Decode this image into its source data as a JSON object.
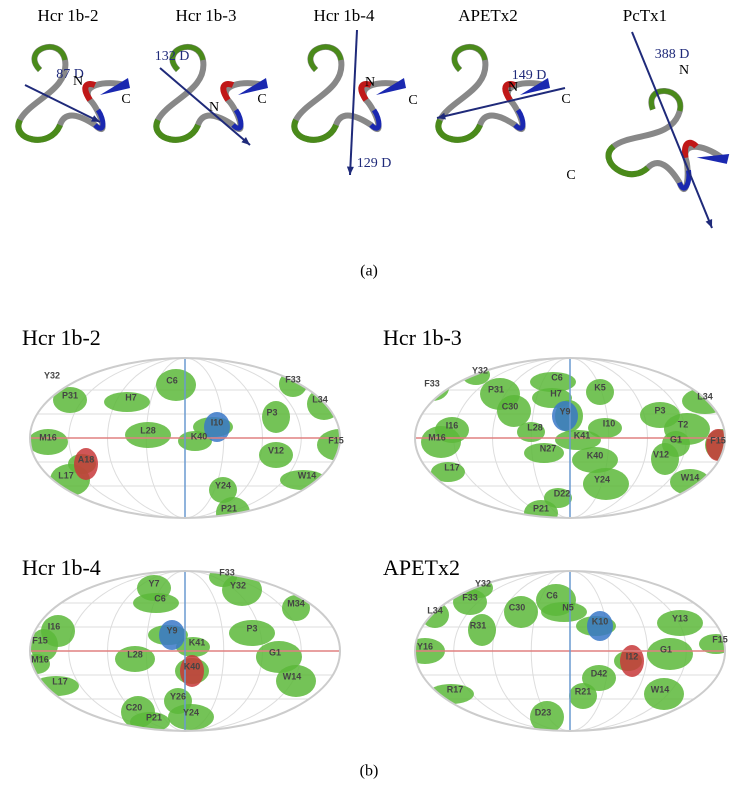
{
  "panel_a": {
    "structures": [
      {
        "name": "Hcr 1b-2",
        "dipole": "87 D",
        "n_label": "N",
        "c_label": "C"
      },
      {
        "name": "Hcr 1b-3",
        "dipole": "132 D",
        "n_label": "N",
        "c_label": "C"
      },
      {
        "name": "Hcr 1b-4",
        "dipole": "129 D",
        "n_label": "N",
        "c_label": "C"
      },
      {
        "name": "APETx2",
        "dipole": "149 D",
        "n_label": "N",
        "c_label": "C"
      },
      {
        "name": "PcTx1",
        "dipole": "388 D",
        "n_label": "N",
        "c_label": "C"
      }
    ],
    "caption": "(a)"
  },
  "panel_b": {
    "maps": [
      {
        "name": "Hcr 1b-2",
        "residues": [
          "Y32",
          "P31",
          "C6",
          "H7",
          "F33",
          "L34",
          "I10",
          "L28",
          "P3",
          "K40",
          "M16",
          "F15",
          "A18",
          "V12",
          "L17",
          "W14",
          "Y24",
          "P21"
        ]
      },
      {
        "name": "Hcr 1b-3",
        "residues": [
          "Y32",
          "F33",
          "P31",
          "C6",
          "K5",
          "C30",
          "H7",
          "L34",
          "Y9",
          "I10",
          "P3",
          "T2",
          "L28",
          "I16",
          "M16",
          "K41",
          "G1",
          "F15",
          "N27",
          "K40",
          "V12",
          "L17",
          "W14",
          "Y24",
          "D22",
          "P21"
        ]
      },
      {
        "name": "Hcr 1b-4",
        "residues": [
          "F33",
          "Y7",
          "Y32",
          "C6",
          "M34",
          "I16",
          "Y9",
          "P3",
          "F15",
          "K41",
          "L28",
          "G1",
          "M16",
          "K40",
          "W14",
          "L17",
          "Y26",
          "C20",
          "P21",
          "Y24"
        ]
      },
      {
        "name": "APETx2",
        "residues": [
          "Y32",
          "F33",
          "C6",
          "N5",
          "L34",
          "C30",
          "K10",
          "Y13",
          "R31",
          "F15",
          "Y16",
          "G1",
          "I12",
          "D42",
          "W14",
          "R17",
          "R21",
          "D23"
        ]
      }
    ],
    "caption": "(b)"
  }
}
